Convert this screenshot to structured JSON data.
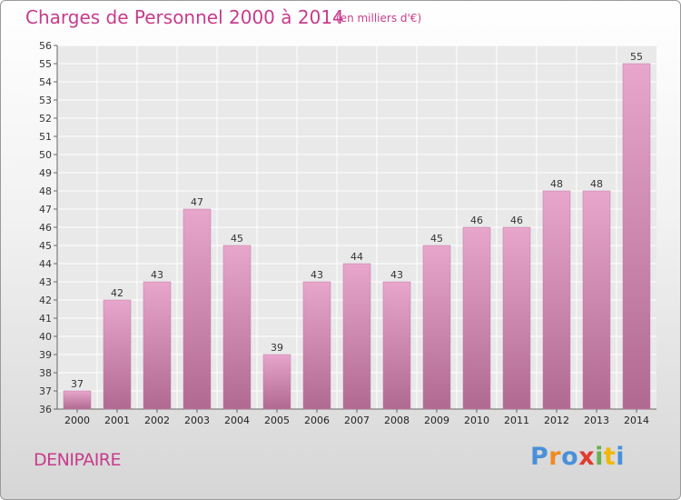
{
  "header": {
    "title": "Charges de Personnel 2000 à 2014",
    "subtitle": "(en milliers d'€)"
  },
  "footer": {
    "commune": "DENIPAIRE",
    "brand": "Proxiti"
  },
  "colors": {
    "accent": "#c83c8c",
    "bar_top": "#e8a6cc",
    "bar_bottom": "#b06a92",
    "logo": [
      "#4a90d9",
      "#f08a24",
      "#4a90d9",
      "#e23a2e",
      "#6ab04c",
      "#f2b807",
      "#4a90d9"
    ]
  },
  "chart_data": {
    "type": "bar",
    "categories": [
      "2000",
      "2001",
      "2002",
      "2003",
      "2004",
      "2005",
      "2006",
      "2007",
      "2008",
      "2009",
      "2010",
      "2011",
      "2012",
      "2013",
      "2014"
    ],
    "values": [
      37,
      42,
      43,
      47,
      45,
      39,
      43,
      44,
      43,
      45,
      46,
      46,
      48,
      48,
      55
    ],
    "ylim": [
      36,
      56
    ],
    "yticks": [
      36,
      37,
      38,
      39,
      40,
      41,
      42,
      43,
      44,
      45,
      46,
      47,
      48,
      49,
      50,
      51,
      52,
      53,
      54,
      55,
      56
    ],
    "grid": true,
    "data_labels": true
  }
}
